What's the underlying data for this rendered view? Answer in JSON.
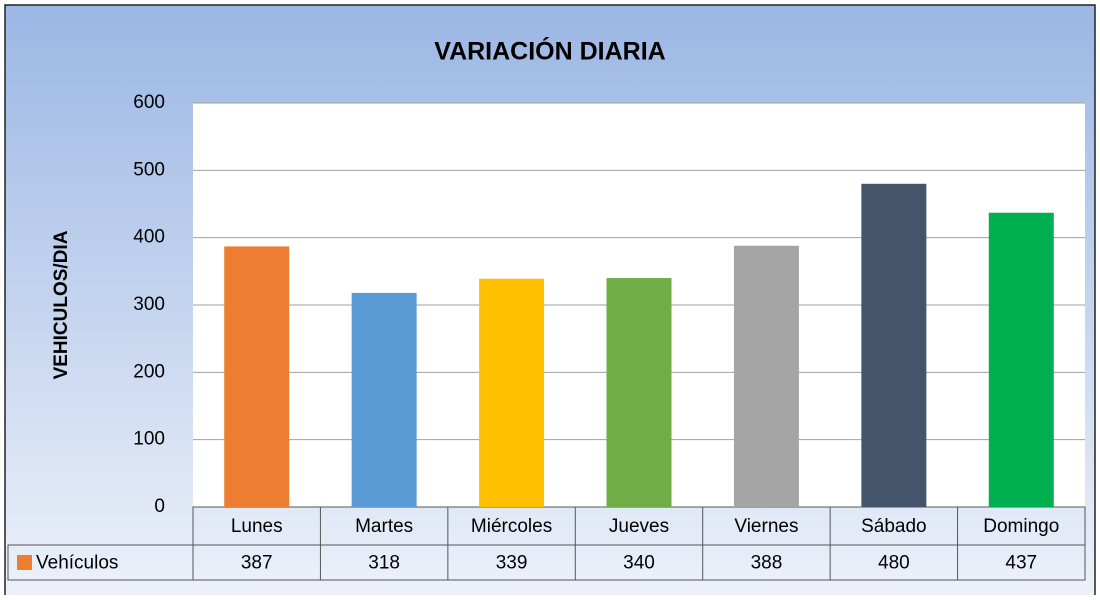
{
  "chart_data": {
    "type": "bar",
    "title": "VARIACIÓN DIARIA",
    "y_label": "VEHICULOS/DIA",
    "categories": [
      "Lunes",
      "Martes",
      "Miércoles",
      "Jueves",
      "Viernes",
      "Sábado",
      "Domingo"
    ],
    "series": [
      {
        "name": "Vehículos",
        "color": "#ED7D31",
        "colors": [
          "#ED7D31",
          "#5B9BD5",
          "#FFC000",
          "#70AD47",
          "#A5A5A5",
          "#44546A",
          "#00B050"
        ],
        "values": [
          387,
          318,
          339,
          340,
          388,
          480,
          437
        ]
      }
    ],
    "ylim": [
      0,
      600
    ],
    "yticks": [
      0,
      100,
      200,
      300,
      400,
      500,
      600
    ],
    "grid": true,
    "data_table": true
  }
}
